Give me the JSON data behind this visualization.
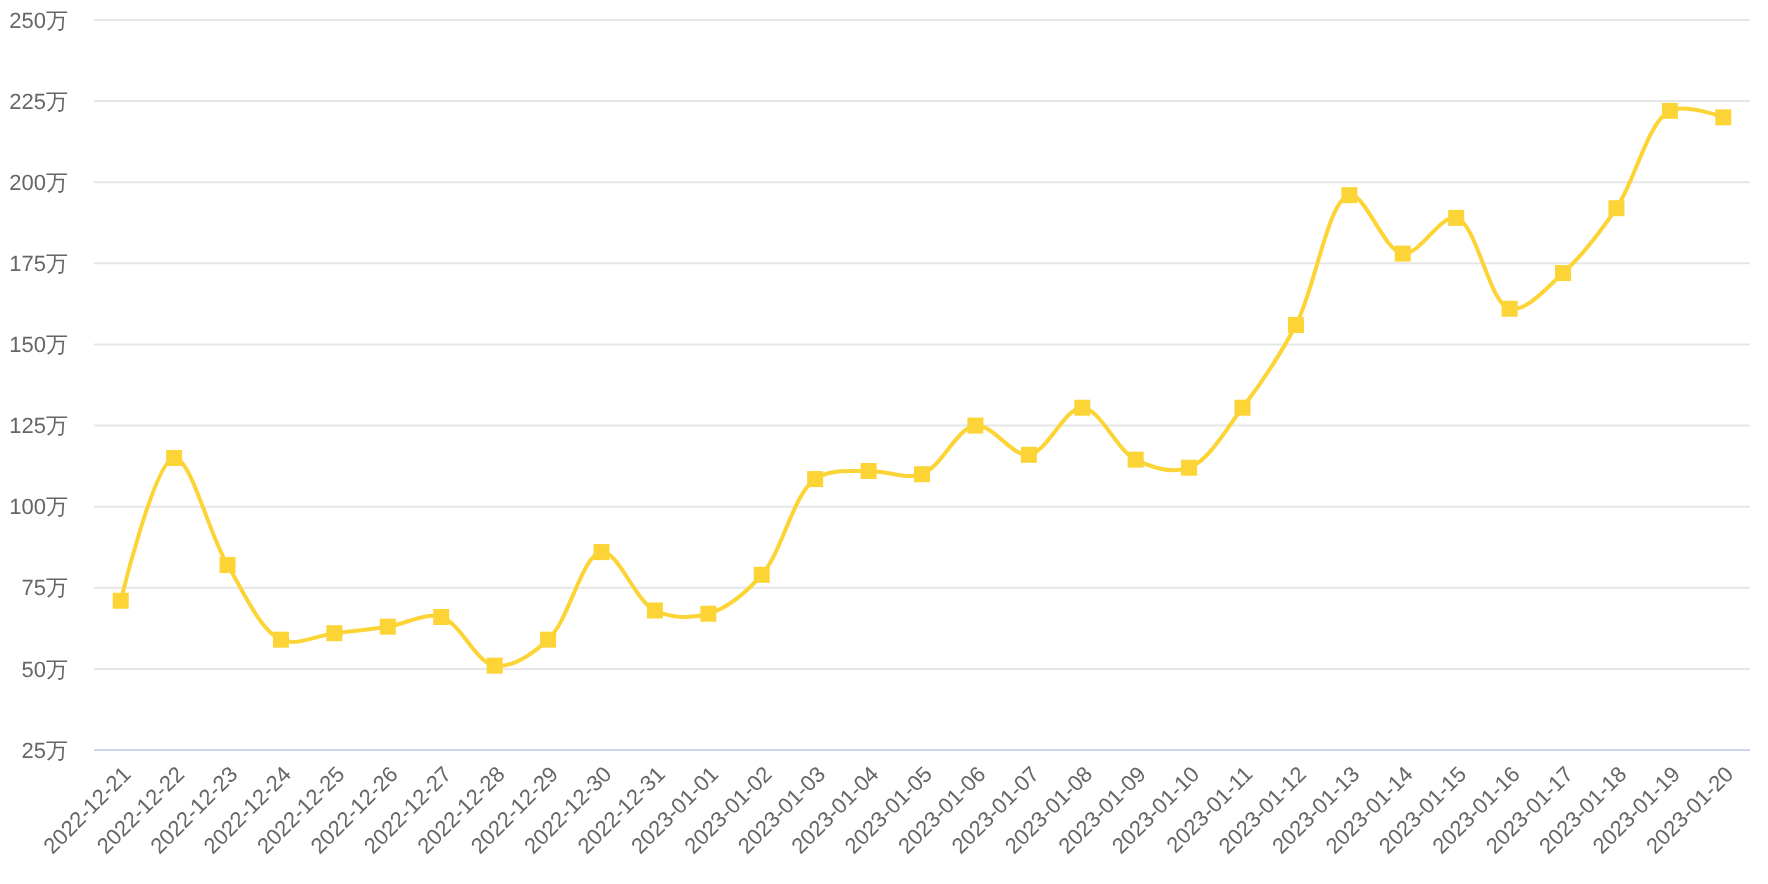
{
  "chart_data": {
    "type": "line",
    "categories": [
      "2022-12-21",
      "2022-12-22",
      "2022-12-23",
      "2022-12-24",
      "2022-12-25",
      "2022-12-26",
      "2022-12-27",
      "2022-12-28",
      "2022-12-29",
      "2022-12-30",
      "2022-12-31",
      "2023-01-01",
      "2023-01-02",
      "2023-01-03",
      "2023-01-04",
      "2023-01-05",
      "2023-01-06",
      "2023-01-07",
      "2023-01-08",
      "2023-01-09",
      "2023-01-10",
      "2023-01-11",
      "2023-01-12",
      "2023-01-13",
      "2023-01-14",
      "2023-01-15",
      "2023-01-16",
      "2023-01-17",
      "2023-01-18",
      "2023-01-19",
      "2023-01-20"
    ],
    "values": [
      71,
      115,
      82,
      59,
      61,
      63,
      66,
      51,
      59,
      86,
      68,
      67,
      79,
      108.5,
      111,
      110,
      125,
      116,
      130.5,
      114.5,
      112,
      130.5,
      156,
      196,
      178,
      189,
      161,
      172,
      192,
      222,
      220
    ],
    "color": "#fcd436",
    "ylim": [
      25,
      250
    ],
    "yticks": [
      {
        "value": 25,
        "label": "25万"
      },
      {
        "value": 50,
        "label": "50万"
      },
      {
        "value": 75,
        "label": "75万"
      },
      {
        "value": 100,
        "label": "100万"
      },
      {
        "value": 125,
        "label": "125万"
      },
      {
        "value": 150,
        "label": "150万"
      },
      {
        "value": 175,
        "label": "175万"
      },
      {
        "value": 200,
        "label": "200万"
      },
      {
        "value": 225,
        "label": "225万"
      },
      {
        "value": 250,
        "label": "250万"
      }
    ],
    "grid": "y",
    "marker": "square",
    "line_style": "solid"
  }
}
